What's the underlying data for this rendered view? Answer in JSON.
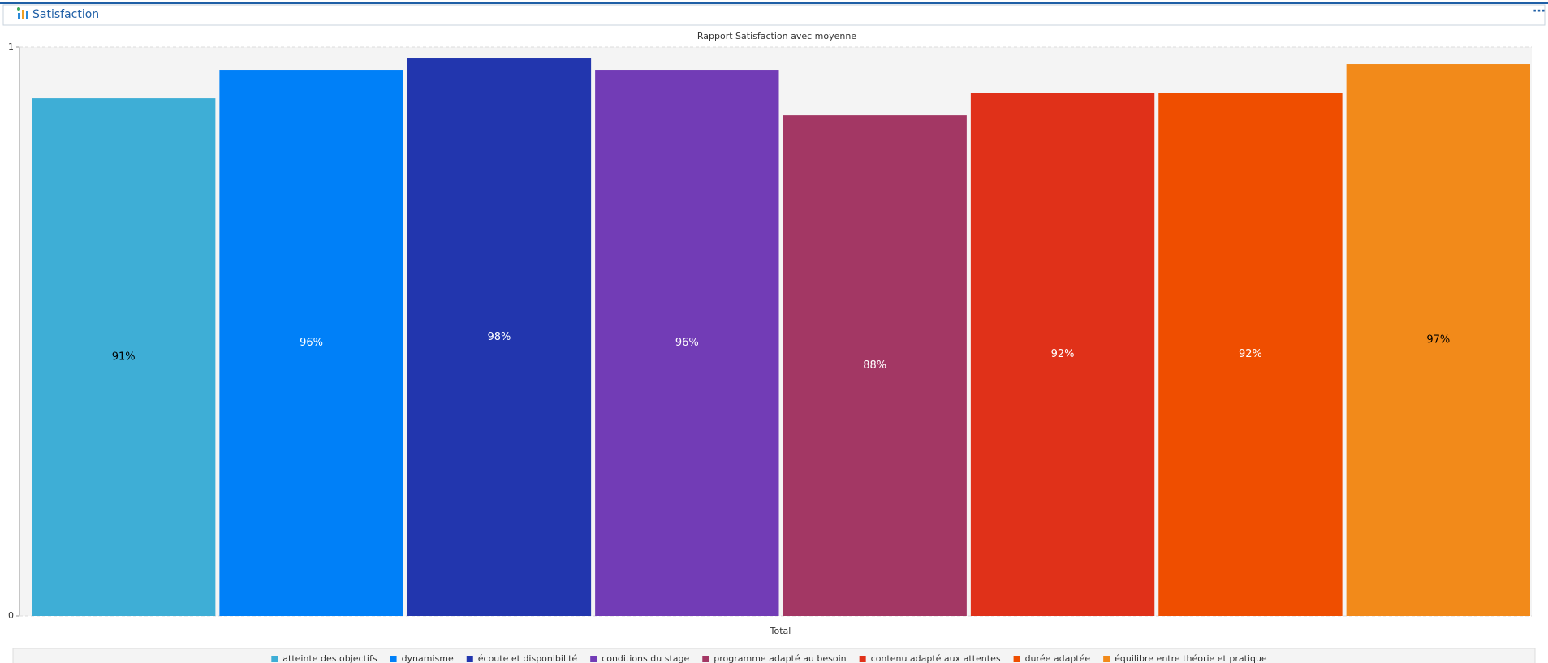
{
  "header": {
    "title": "Satisfaction"
  },
  "chart_data": {
    "type": "bar",
    "title": "Rapport Satisfaction avec moyenne",
    "categories": [
      "Total"
    ],
    "series": [
      {
        "name": "atteinte des objectifs",
        "color": "#3eaed6",
        "values": [
          0.91
        ],
        "value_labels": [
          "91%"
        ]
      },
      {
        "name": "dynamisme",
        "color": "#0080f8",
        "values": [
          0.96
        ],
        "value_labels": [
          "96%"
        ]
      },
      {
        "name": "écoute et disponibilité",
        "color": "#2236ae",
        "values": [
          0.98
        ],
        "value_labels": [
          "98%"
        ]
      },
      {
        "name": "conditions du stage",
        "color": "#723cb6",
        "values": [
          0.96
        ],
        "value_labels": [
          "96%"
        ]
      },
      {
        "name": "programme adapté au besoin",
        "color": "#a33764",
        "values": [
          0.88
        ],
        "value_labels": [
          "88%"
        ]
      },
      {
        "name": "contenu adapté aux attentes",
        "color": "#e03119",
        "values": [
          0.92
        ],
        "value_labels": [
          "92%"
        ]
      },
      {
        "name": "durée adaptée",
        "color": "#ef4e00",
        "values": [
          0.92
        ],
        "value_labels": [
          "92%"
        ]
      },
      {
        "name": "équilibre entre théorie et pratique",
        "color": "#f28a1a",
        "values": [
          0.97
        ],
        "value_labels": [
          "97%"
        ]
      }
    ],
    "ylim": [
      0,
      1
    ],
    "yticks": [
      0,
      1
    ],
    "grid": true,
    "legend": "bottom"
  }
}
